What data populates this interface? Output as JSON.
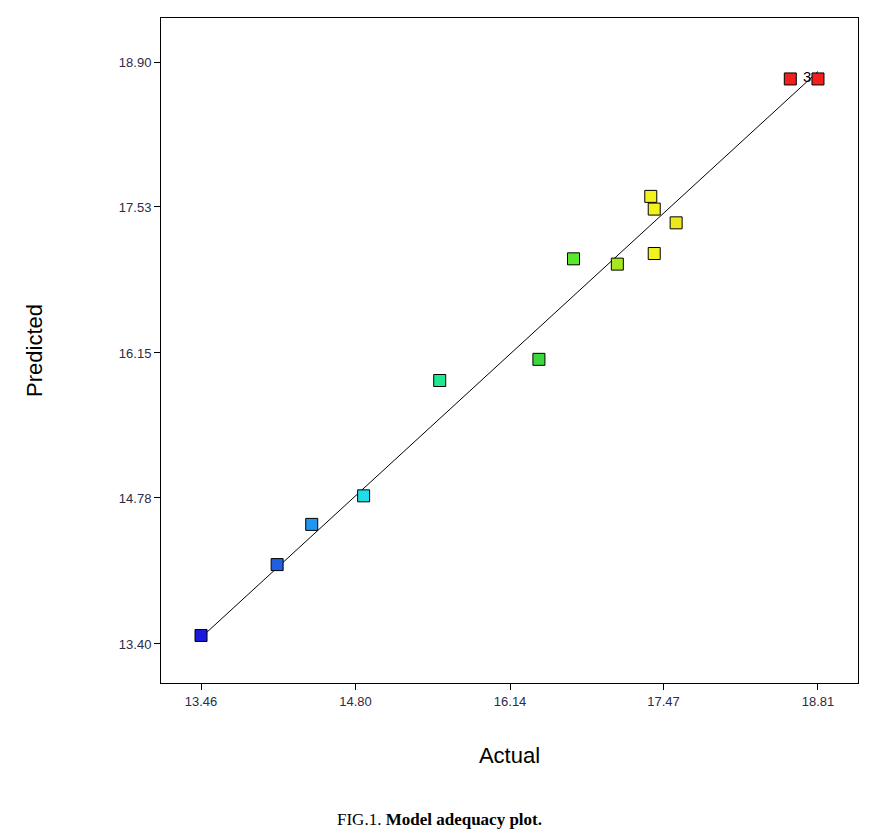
{
  "chart_data": {
    "type": "scatter",
    "x_label": "Actual",
    "y_label": "Predicted",
    "caption_label": "FIG.1.",
    "caption": "Model adequacy plot.",
    "x": [
      13.46,
      14.12,
      14.42,
      14.87,
      15.53,
      16.39,
      16.69,
      17.07,
      17.36,
      17.39,
      17.39,
      17.58,
      18.57,
      18.81
    ],
    "values": [
      13.48,
      14.15,
      14.53,
      14.8,
      15.89,
      16.09,
      17.04,
      16.99,
      17.63,
      17.51,
      17.09,
      17.38,
      18.74,
      18.74
    ],
    "colors": [
      "#1a1adc",
      "#1f5fe0",
      "#2196f0",
      "#1fdce6",
      "#1fe890",
      "#3ad83a",
      "#5ae82a",
      "#a6e81f",
      "#f2f21f",
      "#f2f21f",
      "#f2f21f",
      "#ece81f",
      "#f21f1f",
      "#f21f1f"
    ],
    "marker": "square",
    "line_style": "solid",
    "annotations": [
      {
        "x": 18.81,
        "y": 18.74,
        "text": "3"
      }
    ],
    "xlim": [
      13.113,
      19.157
    ],
    "ylim": [
      13.031,
      19.316
    ],
    "xticks": [
      13.46,
      {
        "value": 14.8,
        "label": "14.80"
      },
      16.14,
      17.47,
      18.81
    ],
    "yticks": [
      {
        "value": 13.4,
        "label": "13.40"
      },
      14.78,
      16.15,
      17.53,
      {
        "value": 18.9,
        "label": "18.90"
      }
    ],
    "grid": false
  }
}
